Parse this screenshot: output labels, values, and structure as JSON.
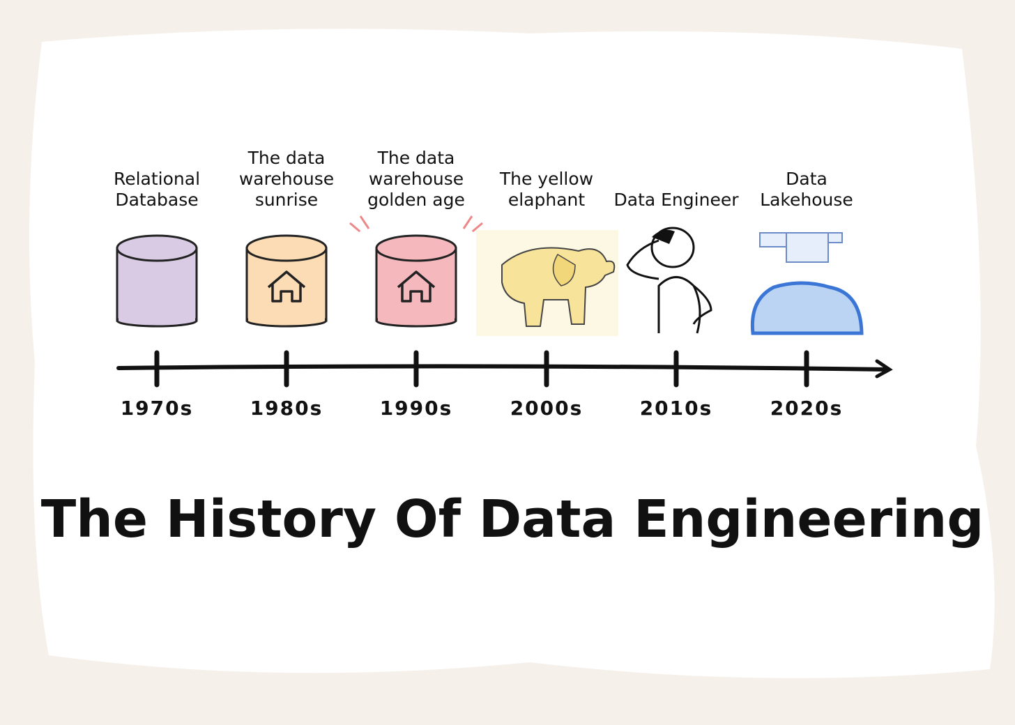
{
  "title": "The History Of Data Engineering",
  "events": [
    {
      "label": [
        "Relational",
        "Database"
      ],
      "decade": "1970s"
    },
    {
      "label": [
        "The data",
        "warehouse",
        "sunrise"
      ],
      "decade": "1980s"
    },
    {
      "label": [
        "The data",
        "warehouse",
        "golden age"
      ],
      "decade": "1990s"
    },
    {
      "label": [
        "The yellow",
        "elaphant"
      ],
      "decade": "2000s"
    },
    {
      "label": [
        "Data Engineer"
      ],
      "decade": "2010s"
    },
    {
      "label": [
        "Data",
        "Lakehouse"
      ],
      "decade": "2020s"
    }
  ]
}
